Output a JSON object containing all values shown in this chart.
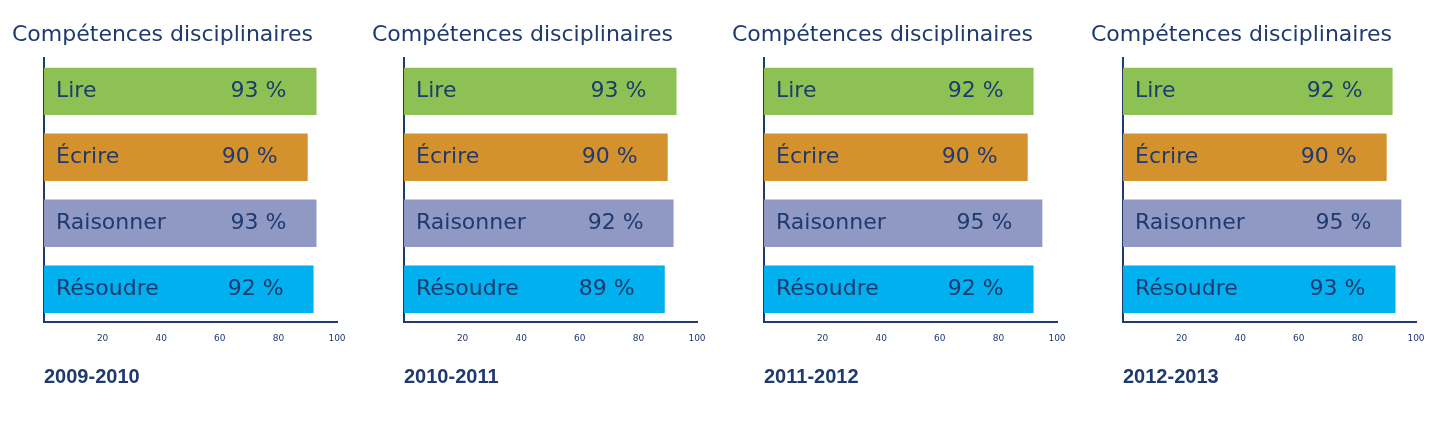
{
  "chart_data": [
    {
      "type": "bar",
      "orientation": "horizontal",
      "title": "Compétences disciplinaires",
      "xlabel": "2009-2010",
      "categories": [
        "Lire",
        "Écrire",
        "Raisonner",
        "Résoudre"
      ],
      "values": [
        93,
        90,
        93,
        92
      ],
      "value_labels": [
        "93 %",
        "90 %",
        "93 %",
        "92 %"
      ],
      "colors": [
        "#8dc153",
        "#d4922e",
        "#8f99c4",
        "#00b0ef"
      ],
      "xlim": [
        0,
        100
      ],
      "xticks": [
        20,
        40,
        60,
        80,
        100
      ],
      "grid": false,
      "legend": false
    },
    {
      "type": "bar",
      "orientation": "horizontal",
      "title": "Compétences disciplinaires",
      "xlabel": "2010-2011",
      "categories": [
        "Lire",
        "Écrire",
        "Raisonner",
        "Résoudre"
      ],
      "values": [
        93,
        90,
        92,
        89
      ],
      "value_labels": [
        "93 %",
        "90 %",
        "92 %",
        "89 %"
      ],
      "colors": [
        "#8dc153",
        "#d4922e",
        "#8f99c4",
        "#00b0ef"
      ],
      "xlim": [
        0,
        100
      ],
      "xticks": [
        20,
        40,
        60,
        80,
        100
      ],
      "grid": false,
      "legend": false
    },
    {
      "type": "bar",
      "orientation": "horizontal",
      "title": "Compétences disciplinaires",
      "xlabel": "2011-2012",
      "categories": [
        "Lire",
        "Écrire",
        "Raisonner",
        "Résoudre"
      ],
      "values": [
        92,
        90,
        95,
        92
      ],
      "value_labels": [
        "92 %",
        "90 %",
        "95 %",
        "92 %"
      ],
      "colors": [
        "#8dc153",
        "#d4922e",
        "#8f99c4",
        "#00b0ef"
      ],
      "xlim": [
        0,
        100
      ],
      "xticks": [
        20,
        40,
        60,
        80,
        100
      ],
      "grid": false,
      "legend": false
    },
    {
      "type": "bar",
      "orientation": "horizontal",
      "title": "Compétences disciplinaires",
      "xlabel": "2012-2013",
      "categories": [
        "Lire",
        "Écrire",
        "Raisonner",
        "Résoudre"
      ],
      "values": [
        92,
        90,
        95,
        93
      ],
      "value_labels": [
        "92 %",
        "90 %",
        "95 %",
        "93 %"
      ],
      "colors": [
        "#8dc153",
        "#d4922e",
        "#8f99c4",
        "#00b0ef"
      ],
      "xlim": [
        0,
        100
      ],
      "xticks": [
        20,
        40,
        60,
        80,
        100
      ],
      "grid": false,
      "legend": false
    }
  ]
}
